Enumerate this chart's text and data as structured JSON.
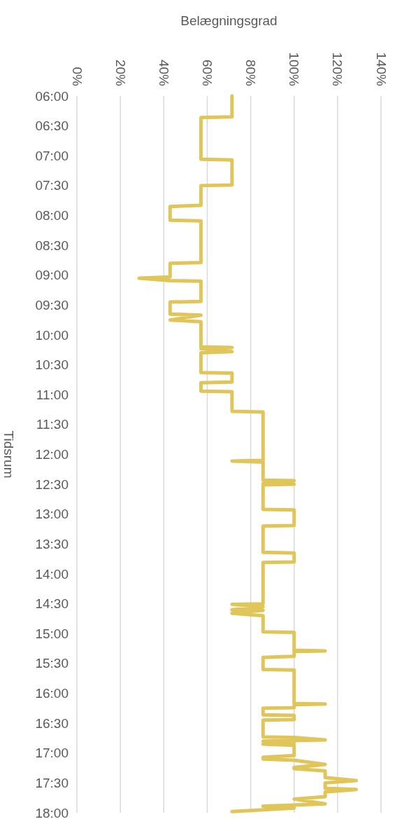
{
  "chart_data": {
    "type": "line",
    "xlabel": "Belægningsgrad",
    "ylabel": "Tidsrum",
    "xlim": [
      0,
      140
    ],
    "xticks": [
      {
        "value": 0,
        "label": "0%"
      },
      {
        "value": 20,
        "label": "20%"
      },
      {
        "value": 40,
        "label": "40%"
      },
      {
        "value": 60,
        "label": "60%"
      },
      {
        "value": 80,
        "label": "80%"
      },
      {
        "value": 100,
        "label": "100%"
      },
      {
        "value": 120,
        "label": "120%"
      },
      {
        "value": 140,
        "label": "140%"
      }
    ],
    "ylim": [
      18,
      6
    ],
    "yticks": [
      {
        "value": 6,
        "label": "06:00"
      },
      {
        "value": 6.5,
        "label": "06:30"
      },
      {
        "value": 7,
        "label": "07:00"
      },
      {
        "value": 7.5,
        "label": "07:30"
      },
      {
        "value": 8,
        "label": "08:00"
      },
      {
        "value": 8.5,
        "label": "08:30"
      },
      {
        "value": 9,
        "label": "09:00"
      },
      {
        "value": 9.5,
        "label": "09:30"
      },
      {
        "value": 10,
        "label": "10:00"
      },
      {
        "value": 10.5,
        "label": "10:30"
      },
      {
        "value": 11,
        "label": "11:00"
      },
      {
        "value": 11.5,
        "label": "11:30"
      },
      {
        "value": 12,
        "label": "12:00"
      },
      {
        "value": 12.5,
        "label": "12:30"
      },
      {
        "value": 13,
        "label": "13:00"
      },
      {
        "value": 13.5,
        "label": "13:30"
      },
      {
        "value": 14,
        "label": "14:00"
      },
      {
        "value": 14.5,
        "label": "14:30"
      },
      {
        "value": 15,
        "label": "15:00"
      },
      {
        "value": 15.5,
        "label": "15:30"
      },
      {
        "value": 16,
        "label": "16:00"
      },
      {
        "value": 16.5,
        "label": "16:30"
      },
      {
        "value": 17,
        "label": "17:00"
      },
      {
        "value": 17.5,
        "label": "17:30"
      },
      {
        "value": 18,
        "label": "18:00"
      }
    ],
    "grid": "x",
    "marker": "none",
    "line_style": "solid",
    "series": [
      {
        "color": "#dfc55a",
        "x": [
          71.4,
          71.4,
          57.1,
          57.1,
          71.4,
          71.4,
          57.1,
          57.1,
          42.9,
          42.9,
          57.1,
          57.1,
          42.9,
          42.9,
          28.6,
          42.9,
          57.1,
          57.1,
          42.9,
          42.9,
          57.1,
          42.9,
          57.1,
          57.1,
          71.4,
          57.1,
          71.4,
          57.1,
          57.1,
          71.4,
          71.4,
          57.1,
          57.1,
          71.4,
          71.4,
          85.7,
          85.7,
          71.4,
          85.7,
          85.7,
          100,
          85.7,
          100,
          85.7,
          85.7,
          100,
          100,
          85.7,
          85.7,
          100,
          100,
          85.7,
          85.7,
          71.4,
          85.7,
          71.4,
          85.7,
          71.4,
          85.7,
          85.7,
          100,
          100,
          114.3,
          100,
          100,
          85.7,
          85.7,
          100,
          100,
          114.3,
          100,
          100,
          85.7,
          85.7,
          100,
          100,
          85.7,
          85.7,
          100,
          114.3,
          85.7,
          100,
          85.7,
          100,
          100,
          85.7,
          85.7,
          100,
          114.3,
          100,
          100,
          114.3,
          114.3,
          128.6,
          114.3,
          114.3,
          128.6,
          114.3,
          114.3,
          100,
          114.3,
          100,
          85.7,
          100,
          71.4
        ],
        "values": [
          6.0,
          6.35,
          6.36,
          7.06,
          7.07,
          7.49,
          7.5,
          7.83,
          7.85,
          8.08,
          8.09,
          8.79,
          8.8,
          9.03,
          9.05,
          9.09,
          9.1,
          9.44,
          9.45,
          9.65,
          9.67,
          9.75,
          9.78,
          10.2,
          10.21,
          10.23,
          10.28,
          10.3,
          10.63,
          10.64,
          10.79,
          10.8,
          10.94,
          10.95,
          11.28,
          11.29,
          12.1,
          12.11,
          12.13,
          12.43,
          12.44,
          12.49,
          12.5,
          12.51,
          12.92,
          12.93,
          13.19,
          13.2,
          13.64,
          13.65,
          13.8,
          13.81,
          14.5,
          14.51,
          14.55,
          14.6,
          14.61,
          14.66,
          14.7,
          14.97,
          14.98,
          15.28,
          15.29,
          15.3,
          15.38,
          15.4,
          15.6,
          15.61,
          16.17,
          16.18,
          16.19,
          16.24,
          16.25,
          16.36,
          16.37,
          16.44,
          16.45,
          16.73,
          16.74,
          16.78,
          16.8,
          16.83,
          16.85,
          16.87,
          17.04,
          17.07,
          17.1,
          17.12,
          17.19,
          17.24,
          17.26,
          17.3,
          17.41,
          17.46,
          17.5,
          17.59,
          17.61,
          17.65,
          17.73,
          17.77,
          17.85,
          17.87,
          17.89,
          17.92,
          17.98
        ]
      }
    ]
  }
}
